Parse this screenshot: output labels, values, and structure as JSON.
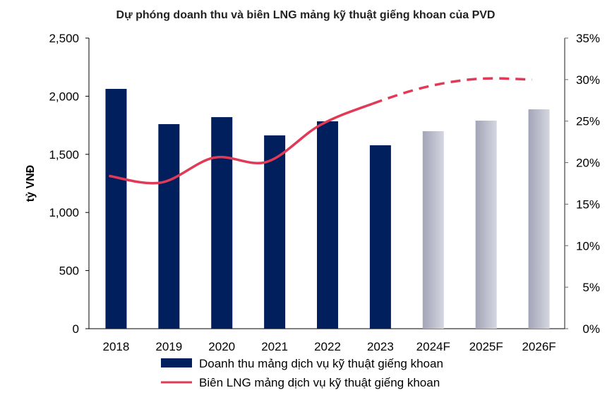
{
  "chart_data": {
    "type": "bar+line",
    "title": "Dự phóng doanh thu và biên LNG mảng kỹ thuật giếng khoan của PVD",
    "ylabel": "tỷ VNĐ",
    "categories": [
      "2018",
      "2019",
      "2020",
      "2021",
      "2022",
      "2023",
      "2024F",
      "2025F",
      "2026F"
    ],
    "y_ticks": [
      "0",
      "500",
      "1,000",
      "1,500",
      "2,000",
      "2,500"
    ],
    "y2_ticks": [
      "0%",
      "5%",
      "10%",
      "15%",
      "20%",
      "25%",
      "30%",
      "35%"
    ],
    "ylim": [
      0,
      2500
    ],
    "y2lim": [
      0,
      35
    ],
    "legend_position": "bottom",
    "series": [
      {
        "name": "Doanh thu mảng dịch vụ kỹ thuật giếng khoan",
        "type": "bar",
        "axis": "left",
        "values": [
          2063,
          1760,
          1820,
          1663,
          1784,
          1578,
          1699,
          1790,
          1887
        ],
        "color": "#001f5c",
        "forecast_color": "#b4b6c6"
      },
      {
        "name": "Biên LNG mảng dịch vụ kỹ thuật giếng khoan",
        "type": "line",
        "axis": "right",
        "values": [
          18.4,
          17.6,
          20.6,
          20.1,
          24.5,
          27.1,
          29.1,
          30.1,
          30.0
        ],
        "color": "#e03a57",
        "dashed_from": "2023"
      }
    ]
  }
}
